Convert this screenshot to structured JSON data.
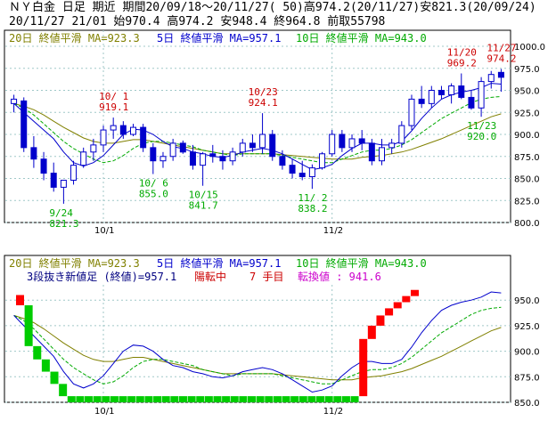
{
  "header": {
    "line1": "ＮＹ白金 日足 期近 期間20/09/18～20/11/27( 50)高974.2(20/11/27)安821.3(20/09/24)",
    "line2": "20/11/27 21/01 始970.4 高974.2 安948.4 終964.8 前取55798"
  },
  "colors": {
    "up": "#0000cc",
    "down": "#0000cc",
    "ma20": "#808000",
    "ma5": "#0000cc",
    "ma10": "#00aa00",
    "grid": "#a0c8c8",
    "annot_red": "#cc0000",
    "annot_green": "#00aa00",
    "brick_red": "#ff0000",
    "brick_green": "#00cc00"
  },
  "upper_legend": {
    "ma20": "20日 終値平滑 MA=923.3",
    "ma5": "5日 終値平滑 MA=957.1",
    "ma10": "10日 終値平滑 MA=943.0"
  },
  "lower_legend": {
    "ma20": "20日 終値平滑 MA=923.3",
    "ma5": "5日 終値平滑 MA=957.1",
    "ma10": "10日 終値平滑 MA=943.0",
    "line2_a": "3段抜き新値足 (終値)=957.1",
    "line2_b": "陽転中",
    "line2_c": "7 手目",
    "line2_d": "転換値 : 941.6"
  },
  "chart_data": [
    {
      "type": "candlestick",
      "ylim": [
        800,
        1000
      ],
      "yticks": [
        800,
        825,
        850,
        875,
        900,
        925,
        950,
        975,
        1000
      ],
      "ytick_labels": [
        "800.0",
        "825.0",
        "850.0",
        "875.0",
        "900.0",
        "925.0",
        "950.0",
        "975.0",
        "1000.0"
      ],
      "xtick_labels": [
        {
          "index": 9,
          "label": "10/1"
        },
        {
          "index": 32,
          "label": "11/2"
        }
      ],
      "candles": [
        {
          "o": 935,
          "h": 945,
          "l": 925,
          "c": 940
        },
        {
          "o": 938,
          "h": 942,
          "l": 880,
          "c": 885
        },
        {
          "o": 885,
          "h": 898,
          "l": 862,
          "c": 872
        },
        {
          "o": 872,
          "h": 880,
          "l": 848,
          "c": 856
        },
        {
          "o": 856,
          "h": 868,
          "l": 835,
          "c": 840
        },
        {
          "o": 840,
          "h": 848,
          "l": 821.3,
          "c": 848
        },
        {
          "o": 848,
          "h": 870,
          "l": 843,
          "c": 865
        },
        {
          "o": 865,
          "h": 885,
          "l": 862,
          "c": 880
        },
        {
          "o": 880,
          "h": 895,
          "l": 870,
          "c": 888
        },
        {
          "o": 888,
          "h": 910,
          "l": 880,
          "c": 905
        },
        {
          "o": 905,
          "h": 919.1,
          "l": 895,
          "c": 910
        },
        {
          "o": 910,
          "h": 915,
          "l": 895,
          "c": 900
        },
        {
          "o": 900,
          "h": 912,
          "l": 898,
          "c": 908
        },
        {
          "o": 908,
          "h": 912,
          "l": 880,
          "c": 885
        },
        {
          "o": 885,
          "h": 890,
          "l": 855,
          "c": 870
        },
        {
          "o": 870,
          "h": 880,
          "l": 862,
          "c": 875
        },
        {
          "o": 875,
          "h": 895,
          "l": 870,
          "c": 890
        },
        {
          "o": 890,
          "h": 893,
          "l": 878,
          "c": 880
        },
        {
          "o": 880,
          "h": 888,
          "l": 860,
          "c": 865
        },
        {
          "o": 865,
          "h": 880,
          "l": 841.7,
          "c": 878
        },
        {
          "o": 878,
          "h": 888,
          "l": 868,
          "c": 875
        },
        {
          "o": 875,
          "h": 882,
          "l": 860,
          "c": 870
        },
        {
          "o": 870,
          "h": 885,
          "l": 865,
          "c": 880
        },
        {
          "o": 880,
          "h": 895,
          "l": 875,
          "c": 890
        },
        {
          "o": 890,
          "h": 900,
          "l": 880,
          "c": 885
        },
        {
          "o": 885,
          "h": 924.1,
          "l": 878,
          "c": 900
        },
        {
          "o": 900,
          "h": 905,
          "l": 870,
          "c": 875
        },
        {
          "o": 875,
          "h": 882,
          "l": 860,
          "c": 865
        },
        {
          "o": 865,
          "h": 872,
          "l": 850,
          "c": 856
        },
        {
          "o": 856,
          "h": 870,
          "l": 848,
          "c": 852
        },
        {
          "o": 852,
          "h": 866,
          "l": 838.2,
          "c": 862
        },
        {
          "o": 862,
          "h": 880,
          "l": 860,
          "c": 878
        },
        {
          "o": 878,
          "h": 905,
          "l": 875,
          "c": 900
        },
        {
          "o": 900,
          "h": 905,
          "l": 880,
          "c": 885
        },
        {
          "o": 885,
          "h": 900,
          "l": 880,
          "c": 895
        },
        {
          "o": 895,
          "h": 905,
          "l": 882,
          "c": 890
        },
        {
          "o": 890,
          "h": 895,
          "l": 865,
          "c": 870
        },
        {
          "o": 870,
          "h": 895,
          "l": 865,
          "c": 885
        },
        {
          "o": 885,
          "h": 895,
          "l": 878,
          "c": 890
        },
        {
          "o": 890,
          "h": 915,
          "l": 885,
          "c": 910
        },
        {
          "o": 910,
          "h": 945,
          "l": 905,
          "c": 940
        },
        {
          "o": 940,
          "h": 955,
          "l": 930,
          "c": 935
        },
        {
          "o": 935,
          "h": 955,
          "l": 930,
          "c": 950
        },
        {
          "o": 950,
          "h": 955,
          "l": 940,
          "c": 945
        },
        {
          "o": 945,
          "h": 958,
          "l": 935,
          "c": 955
        },
        {
          "o": 955,
          "h": 969.2,
          "l": 940,
          "c": 942
        },
        {
          "o": 942,
          "h": 950,
          "l": 928,
          "c": 930
        },
        {
          "o": 930,
          "h": 965,
          "l": 920.0,
          "c": 960
        },
        {
          "o": 960,
          "h": 972,
          "l": 952,
          "c": 968
        },
        {
          "o": 970.4,
          "h": 974.2,
          "l": 948.4,
          "c": 964.8
        }
      ],
      "ma5": [
        935,
        925,
        915,
        905,
        895,
        880,
        868,
        864,
        868,
        876,
        888,
        900,
        906,
        905,
        900,
        892,
        886,
        884,
        880,
        878,
        875,
        874,
        876,
        880,
        882,
        884,
        882,
        878,
        872,
        866,
        860,
        862,
        866,
        876,
        884,
        890,
        890,
        888,
        888,
        892,
        904,
        918,
        930,
        940,
        945,
        948,
        950,
        953,
        958,
        957.1
      ],
      "ma10": [
        935,
        930,
        922,
        912,
        902,
        892,
        884,
        878,
        872,
        868,
        870,
        876,
        884,
        890,
        892,
        892,
        890,
        888,
        886,
        882,
        880,
        878,
        876,
        878,
        878,
        878,
        878,
        876,
        874,
        872,
        870,
        868,
        868,
        872,
        876,
        880,
        882,
        882,
        884,
        888,
        894,
        902,
        910,
        918,
        924,
        930,
        936,
        940,
        942,
        943.0
      ],
      "ma20": [
        935,
        932,
        928,
        922,
        915,
        908,
        902,
        896,
        892,
        890,
        890,
        892,
        894,
        894,
        892,
        890,
        888,
        886,
        884,
        882,
        880,
        878,
        878,
        878,
        878,
        878,
        878,
        877,
        876,
        875,
        874,
        873,
        872,
        872,
        872,
        874,
        875,
        876,
        878,
        880,
        883,
        887,
        891,
        895,
        900,
        905,
        910,
        915,
        920,
        923.3
      ],
      "annotations": [
        {
          "index": 5,
          "value": 821.3,
          "date": "9/24",
          "text": "821.3",
          "kind": "low"
        },
        {
          "index": 10,
          "value": 919.1,
          "date": "10/ 1",
          "text": "919.1",
          "kind": "high"
        },
        {
          "index": 14,
          "value": 855.0,
          "date": "10/ 6",
          "text": "855.0",
          "kind": "low"
        },
        {
          "index": 19,
          "value": 841.7,
          "date": "10/15",
          "text": "841.7",
          "kind": "low"
        },
        {
          "index": 25,
          "value": 924.1,
          "date": "10/23",
          "text": "924.1",
          "kind": "high"
        },
        {
          "index": 30,
          "value": 838.2,
          "date": "11/ 2",
          "text": "838.2",
          "kind": "low"
        },
        {
          "index": 45,
          "value": 969.2,
          "date": "11/20",
          "text": "969.2",
          "kind": "high"
        },
        {
          "index": 47,
          "value": 920.0,
          "date": "11/23",
          "text": "920.0",
          "kind": "low"
        },
        {
          "index": 49,
          "value": 974.2,
          "date": "11/27",
          "text": "974.2",
          "kind": "high"
        }
      ]
    },
    {
      "type": "new-price-bricks",
      "ylim": [
        850,
        965
      ],
      "yticks": [
        850,
        875,
        900,
        925,
        950
      ],
      "ytick_labels": [
        "850.0",
        "875.0",
        "900.0",
        "925.0",
        "950.0"
      ],
      "xtick_labels": [
        {
          "index": 9,
          "label": "10/1"
        },
        {
          "index": 32,
          "label": "11/2"
        }
      ],
      "bricks": [
        {
          "index": 0,
          "low": 945,
          "high": 955,
          "dir": "up"
        },
        {
          "index": 1,
          "low": 905,
          "high": 945,
          "dir": "down"
        },
        {
          "index": 2,
          "low": 892,
          "high": 905,
          "dir": "down"
        },
        {
          "index": 3,
          "low": 880,
          "high": 892,
          "dir": "down"
        },
        {
          "index": 4,
          "low": 868,
          "high": 880,
          "dir": "down"
        },
        {
          "index": 5,
          "low": 856,
          "high": 868,
          "dir": "down"
        },
        {
          "index": 6,
          "low": 850,
          "high": 856,
          "dir": "down"
        },
        {
          "index": 7,
          "low": 850,
          "high": 856,
          "dir": "down"
        },
        {
          "index": 8,
          "low": 850,
          "high": 856,
          "dir": "down"
        },
        {
          "index": 9,
          "low": 850,
          "high": 856,
          "dir": "down"
        },
        {
          "index": 10,
          "low": 850,
          "high": 856,
          "dir": "down"
        },
        {
          "index": 11,
          "low": 850,
          "high": 856,
          "dir": "down"
        },
        {
          "index": 12,
          "low": 850,
          "high": 856,
          "dir": "down"
        },
        {
          "index": 13,
          "low": 850,
          "high": 856,
          "dir": "down"
        },
        {
          "index": 14,
          "low": 850,
          "high": 856,
          "dir": "down"
        },
        {
          "index": 15,
          "low": 850,
          "high": 856,
          "dir": "down"
        },
        {
          "index": 16,
          "low": 850,
          "high": 856,
          "dir": "down"
        },
        {
          "index": 17,
          "low": 850,
          "high": 856,
          "dir": "down"
        },
        {
          "index": 18,
          "low": 850,
          "high": 856,
          "dir": "down"
        },
        {
          "index": 19,
          "low": 850,
          "high": 856,
          "dir": "down"
        },
        {
          "index": 20,
          "low": 850,
          "high": 856,
          "dir": "down"
        },
        {
          "index": 21,
          "low": 850,
          "high": 856,
          "dir": "down"
        },
        {
          "index": 22,
          "low": 850,
          "high": 856,
          "dir": "down"
        },
        {
          "index": 23,
          "low": 850,
          "high": 856,
          "dir": "down"
        },
        {
          "index": 24,
          "low": 850,
          "high": 856,
          "dir": "down"
        },
        {
          "index": 25,
          "low": 850,
          "high": 856,
          "dir": "down"
        },
        {
          "index": 26,
          "low": 850,
          "high": 856,
          "dir": "down"
        },
        {
          "index": 27,
          "low": 850,
          "high": 856,
          "dir": "down"
        },
        {
          "index": 28,
          "low": 850,
          "high": 856,
          "dir": "down"
        },
        {
          "index": 29,
          "low": 850,
          "high": 856,
          "dir": "down"
        },
        {
          "index": 30,
          "low": 850,
          "high": 856,
          "dir": "down"
        },
        {
          "index": 31,
          "low": 850,
          "high": 856,
          "dir": "down"
        },
        {
          "index": 32,
          "low": 850,
          "high": 856,
          "dir": "down"
        },
        {
          "index": 33,
          "low": 850,
          "high": 856,
          "dir": "down"
        },
        {
          "index": 34,
          "low": 850,
          "high": 856,
          "dir": "down"
        },
        {
          "index": 35,
          "low": 850,
          "high": 856,
          "dir": "down"
        },
        {
          "index": 36,
          "low": 850,
          "high": 856,
          "dir": "down"
        },
        {
          "index": 37,
          "low": 850,
          "high": 856,
          "dir": "down"
        },
        {
          "index": 38,
          "low": 850,
          "high": 856,
          "dir": "down"
        },
        {
          "index": 39,
          "low": 850,
          "high": 856,
          "dir": "down"
        },
        {
          "index": 40,
          "low": 856,
          "high": 912,
          "dir": "up"
        },
        {
          "index": 41,
          "low": 912,
          "high": 925,
          "dir": "up"
        },
        {
          "index": 42,
          "low": 925,
          "high": 935,
          "dir": "up"
        },
        {
          "index": 43,
          "low": 935,
          "high": 942,
          "dir": "up"
        },
        {
          "index": 44,
          "low": 942,
          "high": 948,
          "dir": "up"
        },
        {
          "index": 45,
          "low": 948,
          "high": 954,
          "dir": "up"
        },
        {
          "index": 46,
          "low": 954,
          "high": 960,
          "dir": "up"
        }
      ]
    }
  ]
}
